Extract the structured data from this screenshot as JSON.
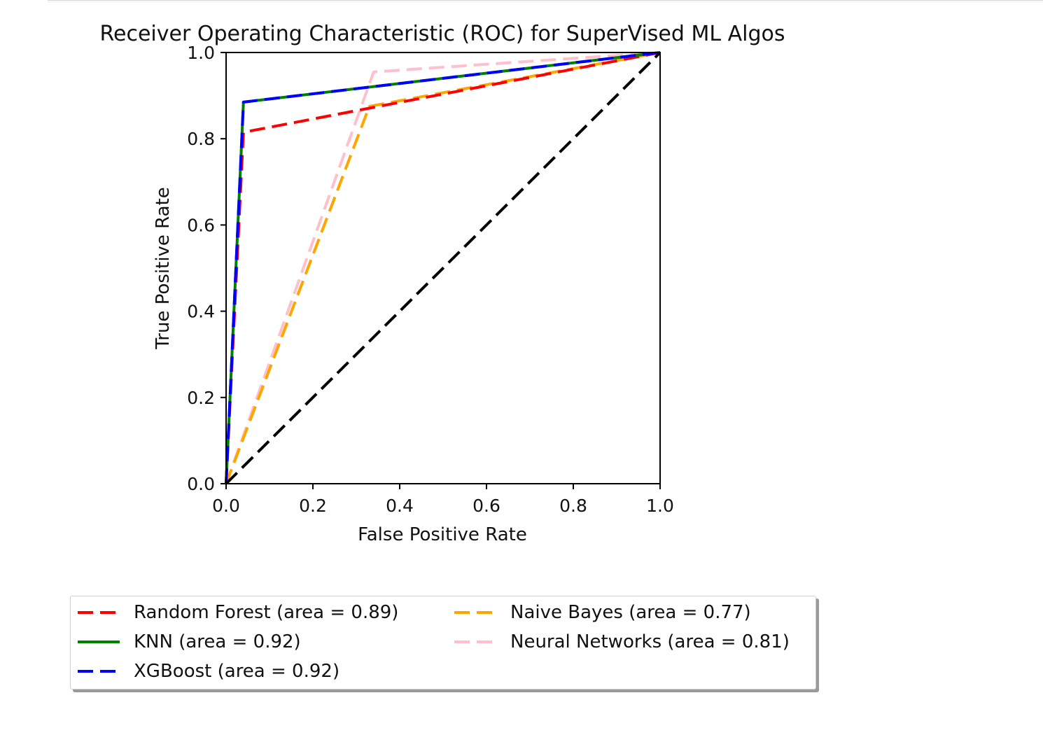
{
  "chart_data": {
    "type": "line",
    "title": "Receiver Operating Characteristic (ROC) for SuperVised ML Algos",
    "xlabel": "False Positive Rate",
    "ylabel": "True Positive Rate",
    "xlim": [
      0.0,
      1.0
    ],
    "ylim": [
      0.0,
      1.0
    ],
    "xticks": [
      "0.0",
      "0.2",
      "0.4",
      "0.6",
      "0.8",
      "1.0"
    ],
    "yticks": [
      "0.0",
      "0.2",
      "0.4",
      "0.6",
      "0.8",
      "1.0"
    ],
    "grid": false,
    "legend_position": "below",
    "series": [
      {
        "name": "Random Forest (area = 0.89)",
        "color": "#ff0000",
        "style": "dashed",
        "x": [
          0.0,
          0.04,
          1.0
        ],
        "y": [
          0.0,
          0.815,
          1.0
        ]
      },
      {
        "name": "KNN (area = 0.92)",
        "color": "#008000",
        "style": "solid",
        "x": [
          0.0,
          0.04,
          1.0
        ],
        "y": [
          0.0,
          0.885,
          1.0
        ]
      },
      {
        "name": "XGBoost (area = 0.92)",
        "color": "#0000ff",
        "style": "dashed",
        "x": [
          0.0,
          0.04,
          1.0
        ],
        "y": [
          0.0,
          0.885,
          1.0
        ]
      },
      {
        "name": "Naive Bayes (area = 0.77)",
        "color": "#ffa500",
        "style": "dashed",
        "x": [
          0.0,
          0.33,
          1.0
        ],
        "y": [
          0.0,
          0.875,
          1.0
        ]
      },
      {
        "name": "Neural Networks (area = 0.81)",
        "color": "#ffc0cb",
        "style": "dashed",
        "x": [
          0.0,
          0.34,
          1.0
        ],
        "y": [
          0.0,
          0.955,
          1.0
        ]
      }
    ],
    "reference_line": {
      "color": "#000000",
      "style": "dashed",
      "x": [
        0.0,
        1.0
      ],
      "y": [
        0.0,
        1.0
      ]
    }
  }
}
